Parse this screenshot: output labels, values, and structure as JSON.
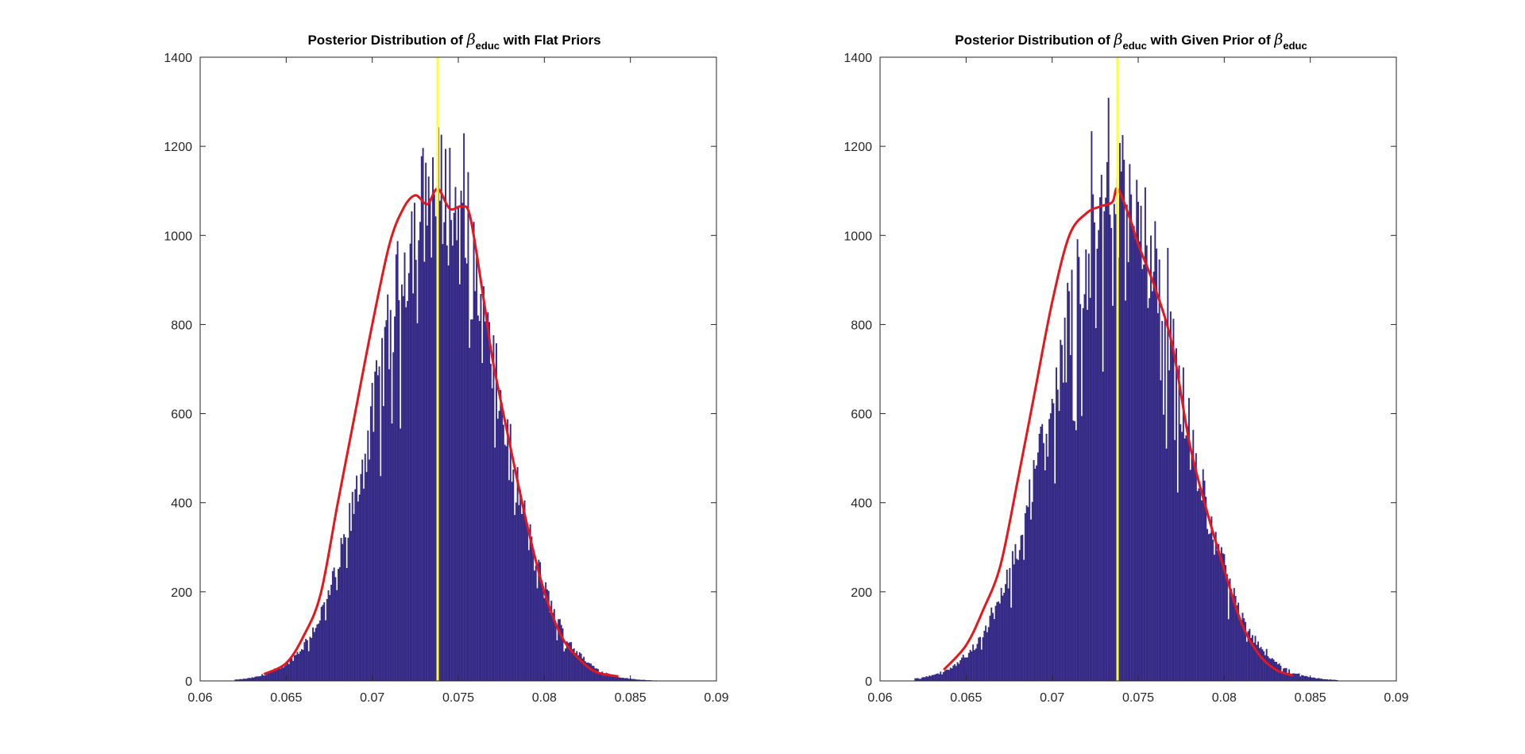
{
  "colors": {
    "bar": "#352a86",
    "curve": "#e3171c",
    "marker": "#ffff33",
    "axis": "#262626",
    "background": "#ffffff"
  },
  "chart_data": [
    {
      "type": "bar",
      "title_parts": {
        "prefix": "Posterior Distribution of",
        "symbol": "β",
        "subscript": "educ",
        "suffix": "with Flat Priors"
      },
      "xlim": [
        0.06,
        0.09
      ],
      "ylim": [
        0,
        1400
      ],
      "xticks": [
        0.06,
        0.065,
        0.07,
        0.075,
        0.08,
        0.085,
        0.09
      ],
      "xtick_labels": [
        "0.06",
        "0.065",
        "0.07",
        "0.075",
        "0.08",
        "0.085",
        "0.09"
      ],
      "yticks": [
        0,
        200,
        400,
        600,
        800,
        1000,
        1200,
        1400
      ],
      "ytick_labels": [
        "0",
        "200",
        "400",
        "600",
        "800",
        "1000",
        "1200",
        "1400"
      ],
      "grid": false,
      "histogram": {
        "bin_range": [
          0.062,
          0.0866
        ],
        "bin_count": 300,
        "mean": 0.0738,
        "sd": 0.0034,
        "peak_count": 1100
      },
      "vertical_line_x": 0.0738,
      "density_curve": {
        "x": [
          0.0637,
          0.065,
          0.066,
          0.067,
          0.068,
          0.069,
          0.07,
          0.071,
          0.0718,
          0.0725,
          0.0732,
          0.0738,
          0.0745,
          0.0752,
          0.0757,
          0.0765,
          0.077,
          0.078,
          0.079,
          0.08,
          0.081,
          0.082,
          0.083,
          0.0843
        ],
        "y": [
          15,
          40,
          100,
          195,
          400,
          600,
          800,
          980,
          1060,
          1090,
          1070,
          1105,
          1060,
          1065,
          1040,
          850,
          720,
          530,
          350,
          200,
          100,
          50,
          20,
          10
        ]
      }
    },
    {
      "type": "bar",
      "title_parts": {
        "prefix": "Posterior Distribution of",
        "symbol": "β",
        "subscript": "educ",
        "suffix": "with Given Prior of",
        "symbol2": "β",
        "subscript2": "educ"
      },
      "xlim": [
        0.06,
        0.09
      ],
      "ylim": [
        0,
        1400
      ],
      "xticks": [
        0.06,
        0.065,
        0.07,
        0.075,
        0.08,
        0.085,
        0.09
      ],
      "xtick_labels": [
        "0.06",
        "0.065",
        "0.07",
        "0.075",
        "0.08",
        "0.085",
        "0.09"
      ],
      "yticks": [
        0,
        200,
        400,
        600,
        800,
        1000,
        1200,
        1400
      ],
      "ytick_labels": [
        "0",
        "200",
        "400",
        "600",
        "800",
        "1000",
        "1200",
        "1400"
      ],
      "grid": false,
      "histogram": {
        "bin_range": [
          0.062,
          0.0866
        ],
        "bin_count": 300,
        "mean": 0.0738,
        "sd": 0.0036,
        "peak_count": 1090
      },
      "vertical_line_x": 0.0738,
      "density_curve": {
        "x": [
          0.0637,
          0.065,
          0.066,
          0.067,
          0.068,
          0.069,
          0.07,
          0.071,
          0.072,
          0.0728,
          0.0735,
          0.0738,
          0.0745,
          0.075,
          0.076,
          0.077,
          0.078,
          0.079,
          0.08,
          0.081,
          0.082,
          0.083,
          0.084
        ],
        "y": [
          25,
          80,
          160,
          260,
          450,
          650,
          850,
          1000,
          1050,
          1065,
          1075,
          1105,
          1040,
          980,
          880,
          750,
          530,
          380,
          250,
          130,
          60,
          25,
          12
        ]
      }
    }
  ]
}
